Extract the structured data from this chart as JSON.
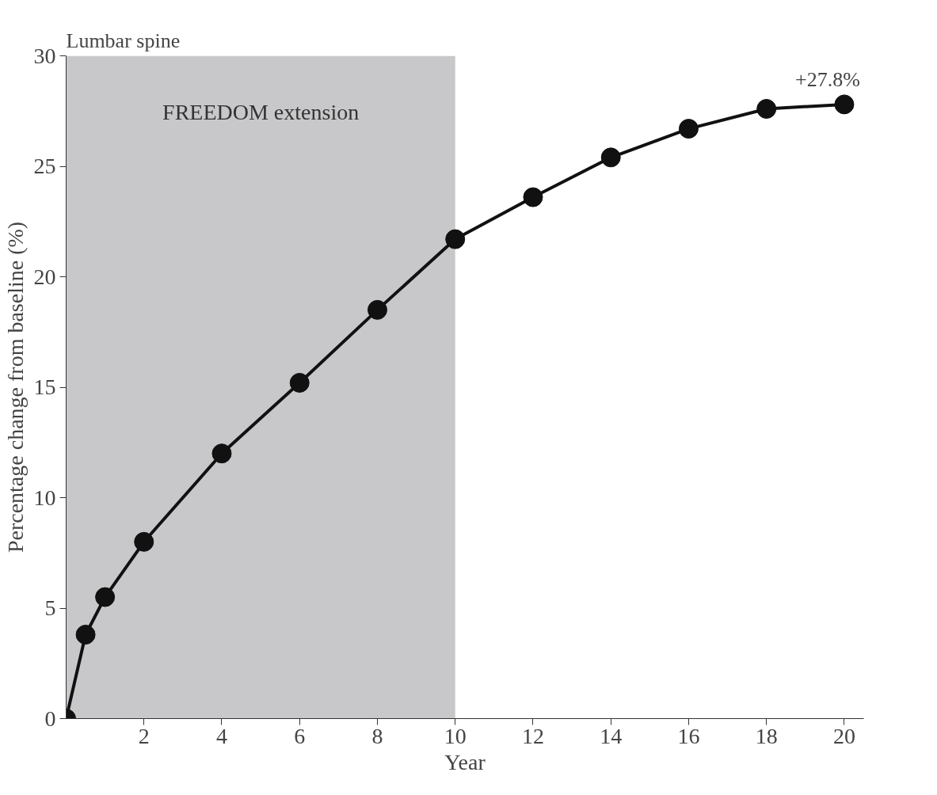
{
  "chart_data": {
    "type": "line",
    "title": "Lumbar spine",
    "xlabel": "Year",
    "ylabel": "Percentage change from baseline (%)",
    "x": [
      0,
      0.5,
      1,
      2,
      4,
      6,
      8,
      10,
      12,
      14,
      16,
      18,
      20
    ],
    "series": [
      {
        "color": "#111111",
        "values": [
          0,
          3.8,
          5.5,
          8.0,
          12.0,
          15.2,
          18.5,
          21.7,
          23.6,
          25.4,
          26.7,
          27.6,
          27.8
        ]
      }
    ],
    "xlim": [
      0,
      20.5
    ],
    "ylim": [
      0,
      30
    ],
    "xticks": [
      2,
      4,
      6,
      8,
      10,
      12,
      14,
      16,
      18,
      20
    ],
    "yticks": [
      0,
      5,
      10,
      15,
      20,
      25,
      30
    ],
    "bands": [
      {
        "axis": "x",
        "from": 0,
        "to": 10,
        "label": "FREEDOM extension",
        "color": "#c8c8ca"
      }
    ],
    "annotations": [
      {
        "text": "+27.8%",
        "x": 20,
        "y": 27.8
      }
    ],
    "marker": "circle",
    "line_style": "solid"
  }
}
